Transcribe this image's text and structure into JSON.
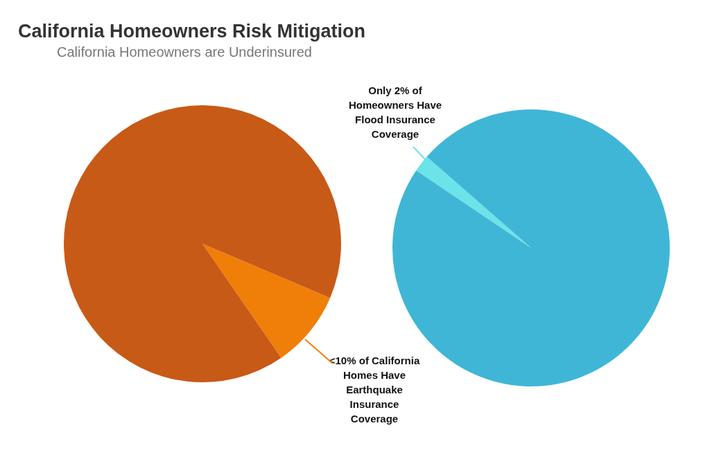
{
  "chart_data": [
    {
      "type": "pie",
      "title": "California Homeowners Risk Mitigation",
      "subtitle": "California Homeowners are Underinsured",
      "categories": [
        null,
        null
      ],
      "values": [
        9,
        91
      ],
      "colors": [
        "#f07f09",
        "#c85a17"
      ],
      "annotations": [
        "<10% of California Homes Have Earthquake Insurance Coverage"
      ]
    },
    {
      "type": "pie",
      "categories": [
        null,
        null
      ],
      "values": [
        2,
        98
      ],
      "colors": [
        "#6ce3e8",
        "#40b6d6"
      ],
      "annotations": [
        "Only 2% of Homeowners Have Flood Insurance Coverage"
      ]
    }
  ]
}
